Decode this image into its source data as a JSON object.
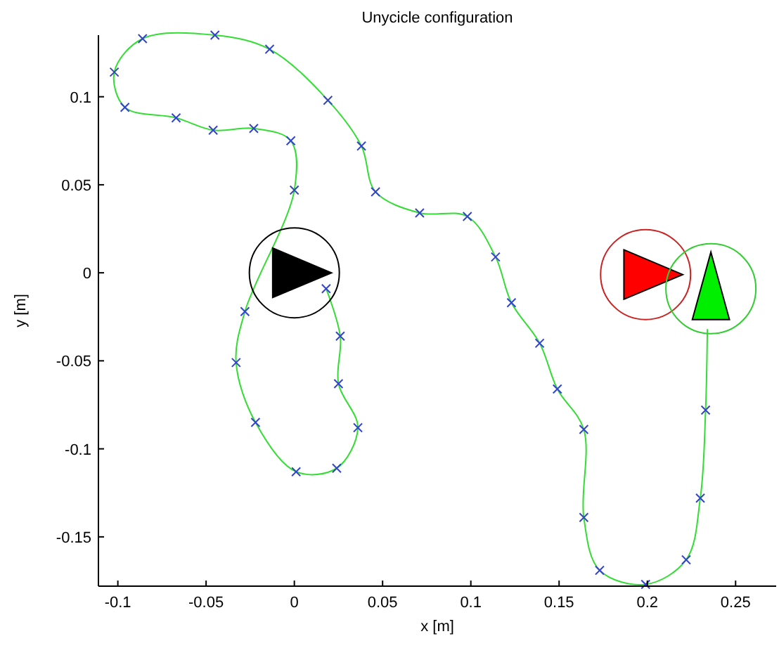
{
  "chart_data": {
    "type": "line",
    "title": "Unycicle configuration",
    "xlabel": "x [m]",
    "ylabel": "y [m]",
    "xlim": [
      -0.111,
      0.273
    ],
    "ylim": [
      -0.178,
      0.135
    ],
    "xticks": [
      -0.1,
      -0.05,
      0,
      0.05,
      0.1,
      0.15,
      0.2,
      0.25
    ],
    "yticks": [
      -0.15,
      -0.1,
      -0.05,
      0,
      0.05,
      0.1
    ],
    "grid": false,
    "series": [
      {
        "color": "#33dd33",
        "marker": "none",
        "x": [
          0.018,
          0.026,
          0.025,
          0.036,
          0.024,
          0.001,
          -0.022,
          -0.033,
          -0.028,
          0,
          -0.002,
          -0.023,
          -0.046,
          -0.067,
          -0.096,
          -0.102,
          -0.086,
          -0.045,
          -0.014,
          0.019,
          0.038,
          0.046,
          0.071,
          0.098,
          0.114,
          0.123,
          0.139,
          0.149,
          0.164,
          0.164,
          0.173,
          0.199,
          0.222,
          0.23,
          0.233,
          0.234
        ],
        "values": [
          -0.009,
          -0.036,
          -0.063,
          -0.088,
          -0.111,
          -0.113,
          -0.085,
          -0.051,
          -0.022,
          0.047,
          0.075,
          0.082,
          0.081,
          0.088,
          0.094,
          0.114,
          0.133,
          0.135,
          0.127,
          0.098,
          0.072,
          0.046,
          0.034,
          0.032,
          0.009,
          -0.017,
          -0.04,
          -0.066,
          -0.089,
          -0.139,
          -0.169,
          -0.177,
          -0.163,
          -0.128,
          -0.078,
          -0.032
        ]
      },
      {
        "type": "scatter",
        "color": "#3344cc",
        "marker": "cross",
        "x": [
          0.018,
          0.026,
          0.025,
          0.036,
          0.024,
          0.001,
          -0.022,
          -0.033,
          -0.028,
          0,
          -0.002,
          -0.023,
          -0.046,
          -0.067,
          -0.096,
          -0.102,
          -0.086,
          -0.045,
          -0.014,
          0.019,
          0.038,
          0.046,
          0.071,
          0.098,
          0.114,
          0.123,
          0.139,
          0.149,
          0.164,
          0.164,
          0.173,
          0.199,
          0.222,
          0.23,
          0.233
        ],
        "values": [
          -0.009,
          -0.036,
          -0.063,
          -0.088,
          -0.111,
          -0.113,
          -0.085,
          -0.051,
          -0.022,
          0.047,
          0.075,
          0.082,
          0.081,
          0.088,
          0.094,
          0.114,
          0.133,
          0.135,
          0.127,
          0.098,
          0.072,
          0.046,
          0.034,
          0.032,
          0.009,
          -0.017,
          -0.04,
          -0.066,
          -0.089,
          -0.139,
          -0.169,
          -0.177,
          -0.163,
          -0.128,
          -0.078
        ]
      }
    ]
  }
}
